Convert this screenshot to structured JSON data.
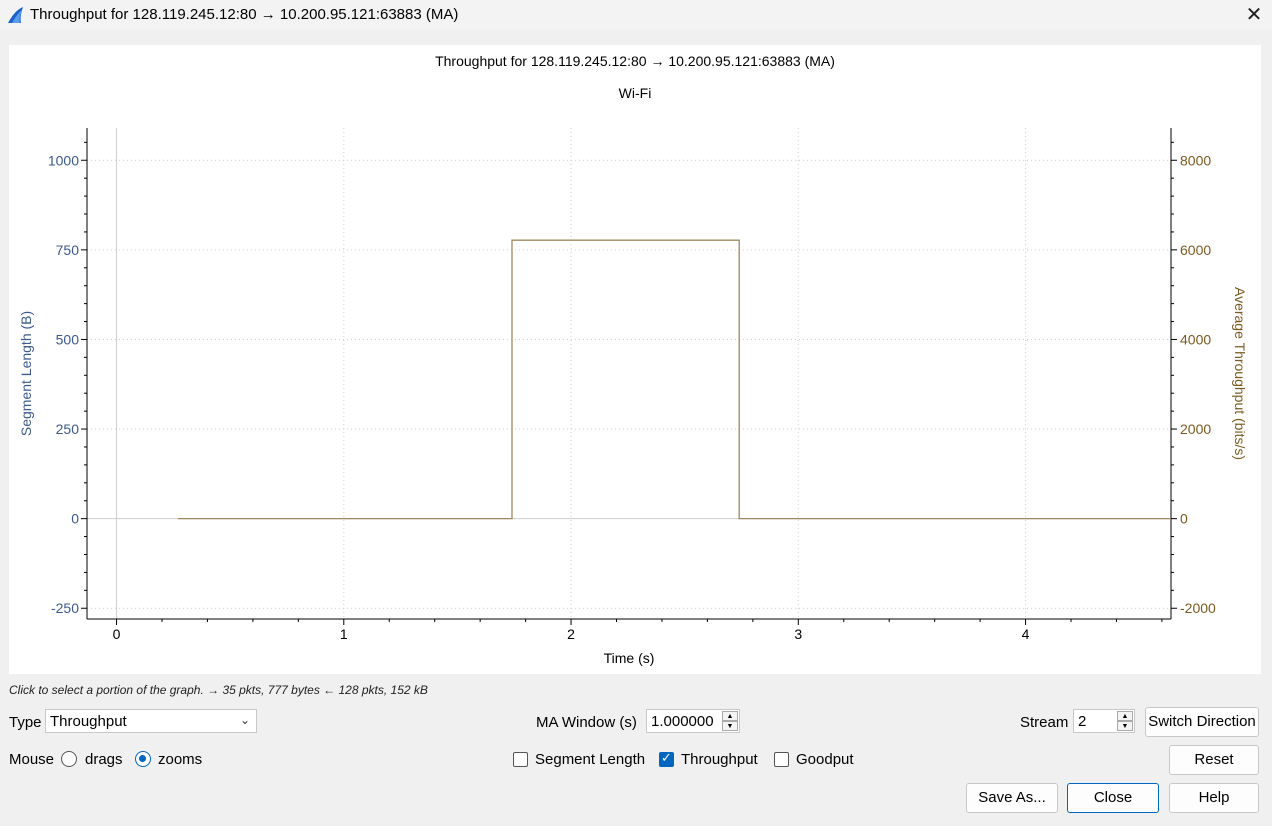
{
  "window": {
    "title": "Throughput for 128.119.245.12:80 → 10.200.95.121:63883 (MA)",
    "close_glyph": "✕"
  },
  "graph": {
    "title": "Throughput for 128.119.245.12:80 → 10.200.95.121:63883 (MA)",
    "subtitle": "Wi-Fi",
    "hint": "Click to select a portion of the graph. → 35 pkts, 777 bytes ← 128 pkts, 152 kB"
  },
  "chart_data": {
    "type": "line",
    "title": "Throughput for 128.119.245.12:80 → 10.200.95.121:63883 (MA)",
    "subtitle": "Wi-Fi",
    "xlabel": "Time (s)",
    "ylabel_left": "Segment Length (B)",
    "ylabel_right": "Average Throughput (bits/s)",
    "xlim": [
      -0.13,
      4.64
    ],
    "ylim_left": [
      -280,
      1090
    ],
    "ylim_right": [
      -2240,
      8720
    ],
    "x_ticks": [
      0,
      1,
      2,
      3,
      4
    ],
    "x_tick_labels": [
      "0",
      "1",
      "2",
      "3",
      "4"
    ],
    "y_left_ticks": [
      1000,
      750,
      500,
      250,
      0,
      -250
    ],
    "y_left_tick_labels": [
      "1000",
      "750",
      "500",
      "250",
      "0",
      "-250"
    ],
    "y_right_ticks": [
      8000,
      6000,
      4000,
      2000,
      0,
      -2000
    ],
    "y_right_tick_labels": [
      "8000",
      "6000",
      "4000",
      "2000",
      "0",
      "-2000"
    ],
    "grid": true,
    "colors": {
      "left_axis": "#3c5a8c",
      "right_axis": "#7a5a20",
      "series": "#a08860"
    },
    "series": [
      {
        "axis": "right",
        "x": [
          0.27,
          1.74,
          1.74,
          2.74,
          2.74,
          4.64
        ],
        "y": [
          0,
          0,
          6216,
          6216,
          0,
          0
        ]
      }
    ]
  },
  "controls": {
    "type_label": "Type",
    "type_value": "Throughput",
    "ma_label": "MA Window (s)",
    "ma_value": "1.000000",
    "stream_label": "Stream",
    "stream_value": "2",
    "switch_direction": "Switch Direction",
    "mouse_label": "Mouse",
    "drags_label": "drags",
    "zooms_label": "zooms",
    "mouse_mode": "zooms",
    "segment_length_label": "Segment Length",
    "segment_length_checked": false,
    "throughput_label": "Throughput",
    "throughput_checked": true,
    "goodput_label": "Goodput",
    "goodput_checked": false,
    "reset": "Reset",
    "save_as": "Save As...",
    "close": "Close",
    "help": "Help"
  }
}
